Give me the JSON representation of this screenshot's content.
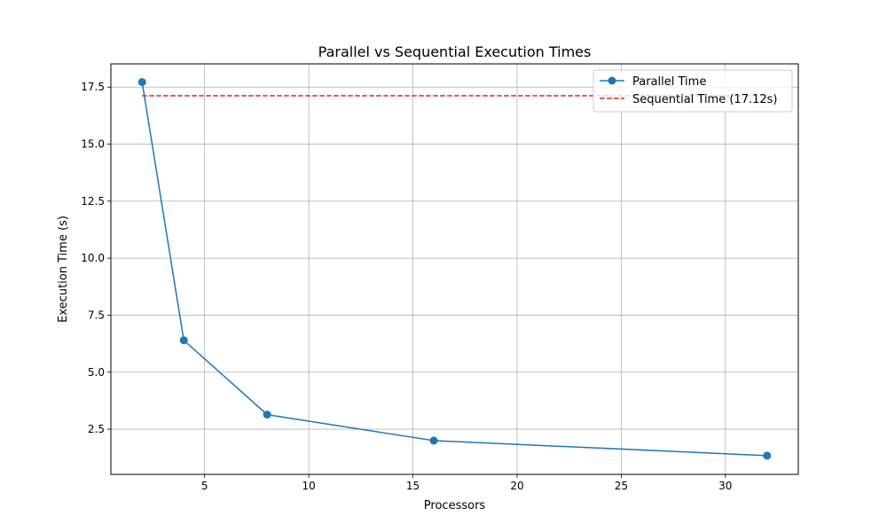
{
  "chart_data": {
    "type": "line",
    "title": "Parallel vs Sequential Execution Times",
    "xlabel": "Processors",
    "ylabel": "Execution Time (s)",
    "xlim": [
      0.5,
      33.5
    ],
    "ylim": [
      0.52,
      18.52
    ],
    "xticks": [
      5,
      10,
      15,
      20,
      25,
      30
    ],
    "yticks": [
      2.5,
      5.0,
      7.5,
      10.0,
      12.5,
      15.0,
      17.5
    ],
    "grid": true,
    "legend_position": "top-right",
    "series": [
      {
        "name": "Parallel Time",
        "style": "solid",
        "marker": "circle",
        "color": "#1f77b4",
        "x": [
          2,
          4,
          8,
          16,
          32
        ],
        "y": [
          17.72,
          6.4,
          3.14,
          2.0,
          1.34
        ]
      },
      {
        "name": "Sequential Time (17.12s)",
        "style": "dashed",
        "marker": "none",
        "color": "#d62728",
        "x": [
          2,
          32
        ],
        "y": [
          17.12,
          17.12
        ]
      }
    ]
  }
}
